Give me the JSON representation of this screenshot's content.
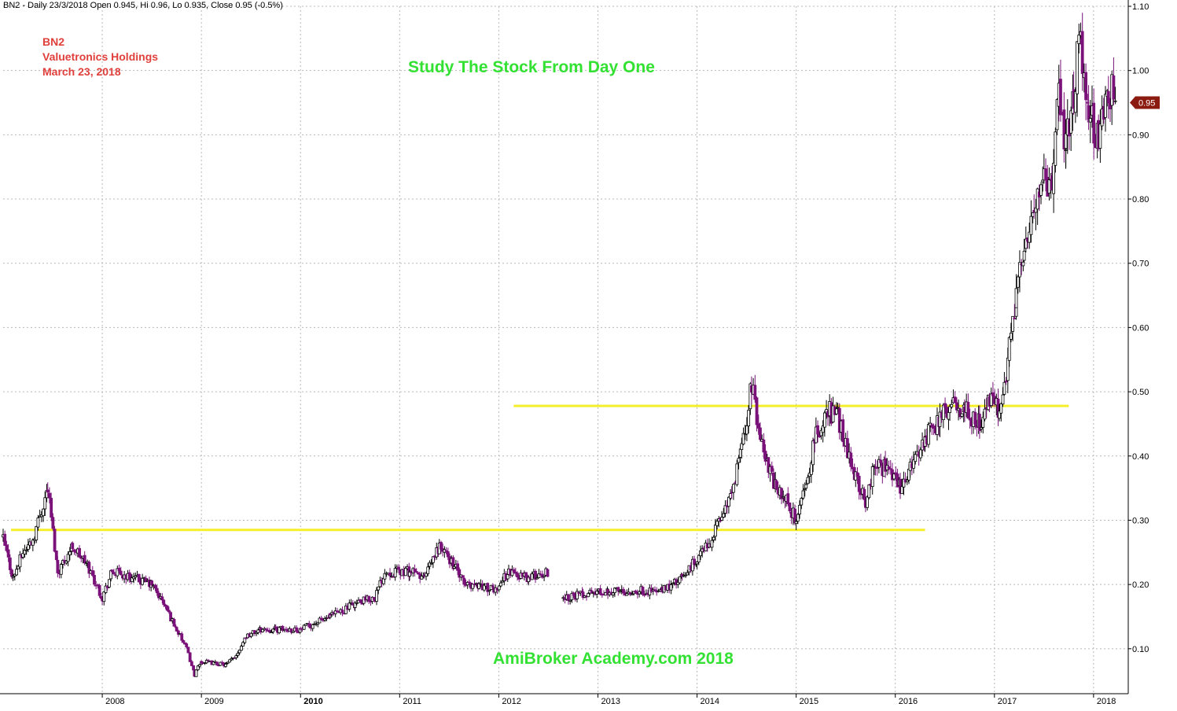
{
  "header": {
    "status_line": "BN2 - Daily 23/3/2018 Open 0.945, Hi 0.96, Lo 0.935, Close 0.95 (-0.5%)"
  },
  "annotations": {
    "ticker": "BN2",
    "company": "Valuetronics Holdings",
    "date": "March 23, 2018",
    "title": "Study The Stock From Day One",
    "watermark": "AmiBroker Academy.com  2018"
  },
  "colors": {
    "background": "#ffffff",
    "grid": "#b8b8b8",
    "up_candle": "#000000",
    "down_candle": "#7a127a",
    "support_line": "#f5ef2a",
    "annotation": "#e0403c",
    "title": "#33e133",
    "last_price_tag": "#8b1a10"
  },
  "chart_data": {
    "type": "candlestick",
    "title": "Study The Stock From Day One",
    "ylim": [
      0.03,
      1.1
    ],
    "y_ticks": [
      "0.10",
      "0.20",
      "0.30",
      "0.40",
      "0.50",
      "0.60",
      "0.70",
      "0.80",
      "0.90",
      "1.00",
      "1.10"
    ],
    "x_ticks": [
      "2008",
      "2009",
      "2010",
      "2011",
      "2012",
      "2013",
      "2014",
      "2015",
      "2016",
      "2017",
      "2018"
    ],
    "last_price": "0.95",
    "horizontal_lines": [
      {
        "y": 0.285,
        "x_start": 2007.08,
        "x_end": 2016.3
      },
      {
        "y": 0.478,
        "x_start": 2012.15,
        "x_end": 2017.75
      }
    ],
    "price_path": [
      [
        2007.0,
        0.27
      ],
      [
        2007.1,
        0.21
      ],
      [
        2007.2,
        0.25
      ],
      [
        2007.3,
        0.27
      ],
      [
        2007.45,
        0.35
      ],
      [
        2007.55,
        0.22
      ],
      [
        2007.7,
        0.26
      ],
      [
        2007.85,
        0.23
      ],
      [
        2008.0,
        0.18
      ],
      [
        2008.1,
        0.22
      ],
      [
        2008.3,
        0.21
      ],
      [
        2008.5,
        0.2
      ],
      [
        2008.62,
        0.17
      ],
      [
        2008.75,
        0.13
      ],
      [
        2008.85,
        0.1
      ],
      [
        2008.93,
        0.06
      ],
      [
        2009.0,
        0.08
      ],
      [
        2009.25,
        0.075
      ],
      [
        2009.35,
        0.09
      ],
      [
        2009.45,
        0.12
      ],
      [
        2009.6,
        0.13
      ],
      [
        2009.75,
        0.13
      ],
      [
        2010.0,
        0.13
      ],
      [
        2010.3,
        0.15
      ],
      [
        2010.55,
        0.17
      ],
      [
        2010.75,
        0.18
      ],
      [
        2010.85,
        0.22
      ],
      [
        2011.1,
        0.22
      ],
      [
        2011.25,
        0.21
      ],
      [
        2011.4,
        0.26
      ],
      [
        2011.55,
        0.23
      ],
      [
        2011.65,
        0.2
      ],
      [
        2011.8,
        0.2
      ],
      [
        2011.95,
        0.19
      ],
      [
        2012.1,
        0.22
      ],
      [
        2012.3,
        0.21
      ],
      [
        2012.5,
        0.22
      ],
      [
        2012.6,
        null
      ],
      [
        2012.65,
        0.18
      ],
      [
        2012.85,
        0.185
      ],
      [
        2013.1,
        0.19
      ],
      [
        2013.4,
        0.19
      ],
      [
        2013.65,
        0.19
      ],
      [
        2013.85,
        0.21
      ],
      [
        2014.0,
        0.24
      ],
      [
        2014.15,
        0.27
      ],
      [
        2014.25,
        0.31
      ],
      [
        2014.35,
        0.34
      ],
      [
        2014.45,
        0.41
      ],
      [
        2014.55,
        0.51
      ],
      [
        2014.62,
        0.45
      ],
      [
        2014.72,
        0.38
      ],
      [
        2014.8,
        0.35
      ],
      [
        2014.9,
        0.33
      ],
      [
        2015.0,
        0.3
      ],
      [
        2015.1,
        0.36
      ],
      [
        2015.2,
        0.43
      ],
      [
        2015.32,
        0.47
      ],
      [
        2015.42,
        0.46
      ],
      [
        2015.5,
        0.42
      ],
      [
        2015.6,
        0.37
      ],
      [
        2015.7,
        0.33
      ],
      [
        2015.8,
        0.39
      ],
      [
        2015.9,
        0.38
      ],
      [
        2016.05,
        0.35
      ],
      [
        2016.15,
        0.38
      ],
      [
        2016.3,
        0.43
      ],
      [
        2016.45,
        0.46
      ],
      [
        2016.55,
        0.48
      ],
      [
        2016.7,
        0.47
      ],
      [
        2016.85,
        0.45
      ],
      [
        2016.95,
        0.49
      ],
      [
        2017.05,
        0.47
      ],
      [
        2017.1,
        0.51
      ],
      [
        2017.15,
        0.58
      ],
      [
        2017.22,
        0.65
      ],
      [
        2017.3,
        0.72
      ],
      [
        2017.4,
        0.78
      ],
      [
        2017.5,
        0.85
      ],
      [
        2017.58,
        0.8
      ],
      [
        2017.65,
        0.97
      ],
      [
        2017.72,
        0.88
      ],
      [
        2017.8,
        0.97
      ],
      [
        2017.87,
        1.05
      ],
      [
        2017.95,
        0.93
      ],
      [
        2018.05,
        0.9
      ],
      [
        2018.15,
        0.97
      ],
      [
        2018.22,
        0.95
      ]
    ]
  }
}
